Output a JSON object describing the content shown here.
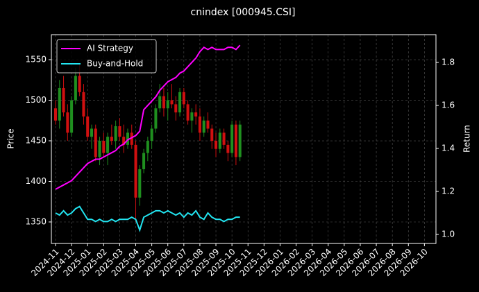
{
  "chart_data": {
    "type": "candlestick",
    "title": "cnindex [000945.CSI]",
    "ylabel": "Price",
    "y2label": "Return",
    "up_color": "#1f8f1f",
    "down_color": "#d01010",
    "grid": true,
    "legend": "upper left",
    "x": [
      1,
      1.25,
      1.5,
      1.75,
      2,
      2.25,
      2.5,
      2.75,
      3,
      3.25,
      3.5,
      3.75,
      4,
      4.25,
      4.5,
      4.75,
      5,
      5.25,
      5.5,
      5.75,
      6,
      6.25,
      6.5,
      6.75,
      7,
      7.25,
      7.5,
      7.75,
      8,
      8.25,
      8.5,
      8.75,
      9,
      9.25,
      9.5,
      9.75,
      10,
      10.25,
      10.5,
      10.75,
      11,
      11.25,
      11.5,
      11.75,
      12,
      12.25,
      12.5
    ],
    "open": [
      1490,
      1475,
      1515,
      1485,
      1460,
      1500,
      1530,
      1510,
      1480,
      1455,
      1465,
      1430,
      1450,
      1435,
      1455,
      1450,
      1468,
      1455,
      1445,
      1460,
      1445,
      1380,
      1415,
      1435,
      1450,
      1465,
      1490,
      1505,
      1490,
      1500,
      1495,
      1485,
      1510,
      1495,
      1475,
      1485,
      1480,
      1460,
      1475,
      1465,
      1450,
      1440,
      1460,
      1445,
      1435,
      1470,
      1430
    ],
    "high": [
      1500,
      1525,
      1530,
      1495,
      1505,
      1540,
      1545,
      1520,
      1490,
      1470,
      1470,
      1455,
      1460,
      1460,
      1470,
      1475,
      1478,
      1470,
      1465,
      1470,
      1450,
      1420,
      1440,
      1455,
      1470,
      1495,
      1520,
      1515,
      1510,
      1520,
      1505,
      1515,
      1515,
      1500,
      1490,
      1495,
      1490,
      1480,
      1485,
      1470,
      1460,
      1465,
      1465,
      1450,
      1475,
      1475,
      1475
    ],
    "low": [
      1470,
      1465,
      1480,
      1450,
      1455,
      1495,
      1505,
      1470,
      1450,
      1440,
      1425,
      1420,
      1430,
      1420,
      1445,
      1440,
      1450,
      1435,
      1440,
      1440,
      1350,
      1370,
      1410,
      1425,
      1440,
      1460,
      1485,
      1480,
      1475,
      1490,
      1475,
      1480,
      1490,
      1470,
      1460,
      1470,
      1450,
      1455,
      1460,
      1440,
      1430,
      1435,
      1440,
      1425,
      1430,
      1420,
      1425
    ],
    "close": [
      1475,
      1515,
      1485,
      1460,
      1500,
      1530,
      1510,
      1480,
      1455,
      1465,
      1430,
      1450,
      1435,
      1455,
      1450,
      1468,
      1455,
      1445,
      1460,
      1445,
      1380,
      1415,
      1435,
      1450,
      1465,
      1490,
      1505,
      1490,
      1500,
      1495,
      1485,
      1510,
      1495,
      1475,
      1485,
      1480,
      1460,
      1475,
      1465,
      1450,
      1440,
      1460,
      1445,
      1435,
      1470,
      1430,
      1470
    ],
    "series": [
      {
        "name": "AI Strategy",
        "type": "line",
        "axis": "y2",
        "color": "#ff00ff",
        "values": [
          1.21,
          1.22,
          1.23,
          1.24,
          1.25,
          1.27,
          1.29,
          1.31,
          1.33,
          1.34,
          1.35,
          1.35,
          1.36,
          1.37,
          1.38,
          1.39,
          1.41,
          1.42,
          1.44,
          1.45,
          1.46,
          1.48,
          1.58,
          1.6,
          1.62,
          1.64,
          1.67,
          1.69,
          1.71,
          1.72,
          1.73,
          1.75,
          1.76,
          1.78,
          1.8,
          1.82,
          1.85,
          1.87,
          1.86,
          1.87,
          1.86,
          1.86,
          1.86,
          1.87,
          1.87,
          1.86,
          1.88
        ]
      },
      {
        "name": "Buy-and-Hold",
        "type": "line",
        "axis": "y2",
        "color": "#22e4f0",
        "values": [
          1.1,
          1.09,
          1.11,
          1.09,
          1.1,
          1.12,
          1.13,
          1.1,
          1.07,
          1.07,
          1.06,
          1.07,
          1.06,
          1.06,
          1.07,
          1.06,
          1.07,
          1.07,
          1.07,
          1.08,
          1.07,
          1.02,
          1.08,
          1.09,
          1.1,
          1.11,
          1.11,
          1.1,
          1.11,
          1.1,
          1.09,
          1.1,
          1.08,
          1.1,
          1.09,
          1.11,
          1.08,
          1.07,
          1.1,
          1.08,
          1.07,
          1.07,
          1.06,
          1.07,
          1.07,
          1.08,
          1.08
        ]
      }
    ],
    "xlim": [
      0.74,
      24.72
    ],
    "xticks": [
      {
        "value": 1,
        "label": "2024-11"
      },
      {
        "value": 2,
        "label": "2024-12"
      },
      {
        "value": 3,
        "label": "2025-01"
      },
      {
        "value": 4,
        "label": "2025-02"
      },
      {
        "value": 5,
        "label": "2025-03"
      },
      {
        "value": 6,
        "label": "2025-04"
      },
      {
        "value": 7,
        "label": "2025-05"
      },
      {
        "value": 8,
        "label": "2025-06"
      },
      {
        "value": 9,
        "label": "2025-07"
      },
      {
        "value": 10,
        "label": "2025-08"
      },
      {
        "value": 11,
        "label": "2025-09"
      },
      {
        "value": 12,
        "label": "2025-10"
      },
      {
        "value": 13,
        "label": "2025-11"
      },
      {
        "value": 14,
        "label": "2025-12"
      },
      {
        "value": 15,
        "label": "2026-01"
      },
      {
        "value": 16,
        "label": "2026-02"
      },
      {
        "value": 17,
        "label": "2026-03"
      },
      {
        "value": 18,
        "label": "2026-04"
      },
      {
        "value": 19,
        "label": "2026-05"
      },
      {
        "value": 20,
        "label": "2026-06"
      },
      {
        "value": 21,
        "label": "2026-07"
      },
      {
        "value": 22,
        "label": "2026-08"
      },
      {
        "value": 23,
        "label": "2026-09"
      },
      {
        "value": 24,
        "label": "2026-10"
      }
    ],
    "ylim": [
      1323.5,
      1580.8
    ],
    "yticks": [
      1350,
      1400,
      1450,
      1500,
      1550
    ],
    "y2lim": [
      0.958,
      1.929
    ],
    "y2ticks": [
      {
        "value": 1,
        "label": "1.0"
      },
      1.2,
      1.4,
      1.6,
      1.8
    ]
  }
}
